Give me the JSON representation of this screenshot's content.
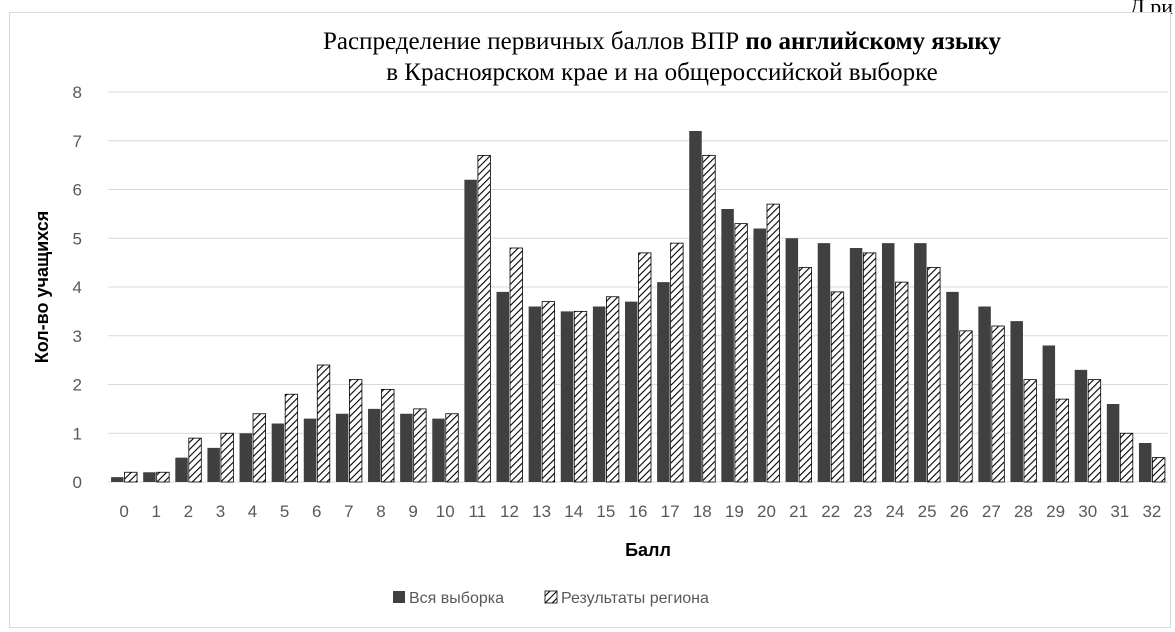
{
  "page_corner_text": "Д   ри",
  "chart_data": {
    "type": "bar",
    "title_line1": "Распределение первичных баллов ВПР ",
    "title_line1_bold": "по английскому языку",
    "title_line2": "в Красноярском крае и на общероссийской выборке",
    "xlabel": "Балл",
    "ylabel": "Кол-во учащихся",
    "ylim": [
      0,
      8
    ],
    "yticks": [
      0,
      1,
      2,
      3,
      4,
      5,
      6,
      7,
      8
    ],
    "grid": true,
    "legend_position": "bottom",
    "categories": [
      "0",
      "1",
      "2",
      "3",
      "4",
      "5",
      "6",
      "7",
      "8",
      "9",
      "10",
      "11",
      "12",
      "13",
      "14",
      "15",
      "16",
      "17",
      "18",
      "19",
      "20",
      "21",
      "22",
      "23",
      "24",
      "25",
      "26",
      "27",
      "28",
      "29",
      "30",
      "31",
      "32"
    ],
    "series": [
      {
        "name": "Вся выборка",
        "color": "#404040",
        "pattern": "solid",
        "values": [
          0.1,
          0.2,
          0.5,
          0.7,
          1.0,
          1.2,
          1.3,
          1.4,
          1.5,
          1.4,
          1.3,
          6.2,
          3.9,
          3.6,
          3.5,
          3.6,
          3.7,
          4.1,
          7.2,
          5.6,
          5.2,
          5.0,
          4.9,
          4.8,
          4.9,
          4.9,
          3.9,
          3.6,
          3.3,
          2.8,
          2.3,
          1.6,
          0.8
        ]
      },
      {
        "name": "Результаты региона",
        "color": "#000000",
        "pattern": "hatched",
        "values": [
          0.2,
          0.2,
          0.9,
          1.0,
          1.4,
          1.8,
          2.4,
          2.1,
          1.9,
          1.5,
          1.4,
          6.7,
          4.8,
          3.7,
          3.5,
          3.8,
          4.7,
          4.9,
          6.7,
          5.3,
          5.7,
          4.4,
          3.9,
          4.7,
          4.1,
          4.4,
          3.1,
          3.2,
          2.1,
          1.7,
          2.1,
          1.0,
          0.5
        ]
      }
    ]
  }
}
